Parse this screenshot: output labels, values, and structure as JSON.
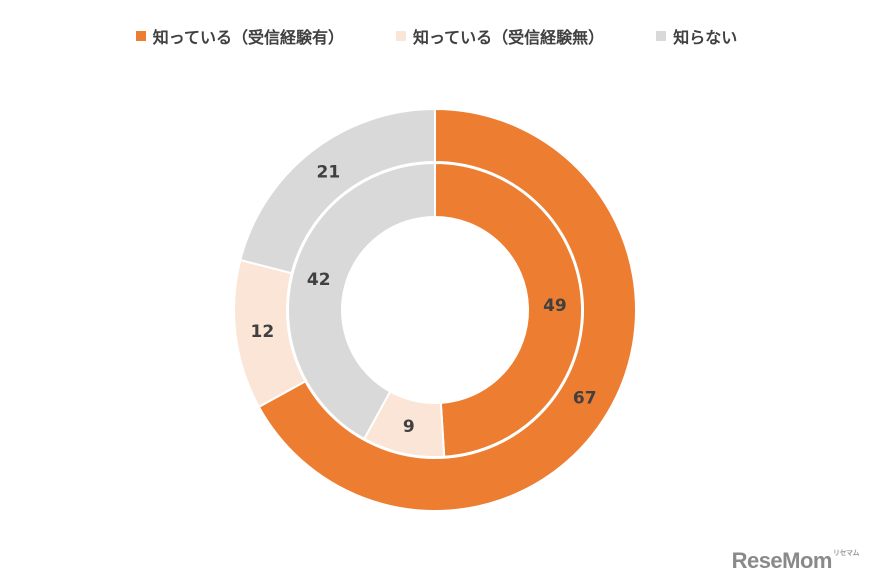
{
  "chart_data": {
    "type": "pie",
    "subtype": "double-donut",
    "legend_position": "top",
    "categories": [
      "知っている（受信経験有）",
      "知っている（受信経験無）",
      "知らない"
    ],
    "colors": [
      "#ED7D31",
      "#FBE5D6",
      "#D9D9D9"
    ],
    "series": [
      {
        "ring": "outer",
        "values": [
          67,
          12,
          21
        ]
      },
      {
        "ring": "inner",
        "values": [
          49,
          9,
          42
        ]
      }
    ]
  },
  "watermark": {
    "text": "ReseMom",
    "kana": "リセマム"
  }
}
